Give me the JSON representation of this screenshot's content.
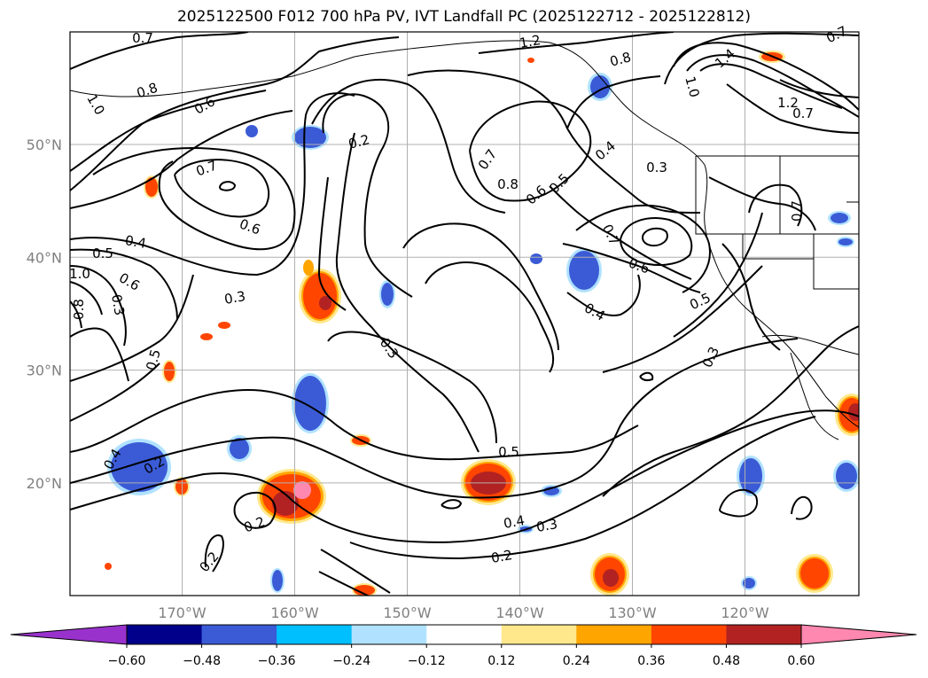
{
  "title": "2025122500 F012 700 hPa PV, IVT Landfall PC (2025122712 - 2025122812)",
  "axes": {
    "lon_ticks": [
      {
        "value": -170,
        "label": "170°W"
      },
      {
        "value": -160,
        "label": "160°W"
      },
      {
        "value": -150,
        "label": "150°W"
      },
      {
        "value": -140,
        "label": "140°W"
      },
      {
        "value": -130,
        "label": "130°W"
      },
      {
        "value": -120,
        "label": "120°W"
      }
    ],
    "lat_ticks": [
      {
        "value": 50,
        "label": "50°N"
      },
      {
        "value": 40,
        "label": "40°N"
      },
      {
        "value": 30,
        "label": "30°N"
      },
      {
        "value": 20,
        "label": "20°N"
      }
    ]
  },
  "colorbar": {
    "levels": [
      "−0.60",
      "−0.48",
      "−0.36",
      "−0.24",
      "−0.12",
      "0.12",
      "0.24",
      "0.36",
      "0.48",
      "0.60"
    ],
    "colors": [
      "#9932cc",
      "#00008b",
      "#3b5bd6",
      "#00bfff",
      "#b0e2ff",
      "#ffffff",
      "#ffe88c",
      "#ffa500",
      "#ff4500",
      "#b22222",
      "#ff88b0"
    ]
  },
  "contour_labels": [
    "0.7",
    "1.2",
    "0.8",
    "0.7",
    "1.0",
    "0.8",
    "0.6",
    "0.2",
    "0.7",
    "0.6",
    "0.4",
    "0.5",
    "0.6",
    "1.0",
    "0.8",
    "0.3",
    "0.3",
    "0.5",
    "0.3",
    "0.7",
    "0.8",
    "0.6",
    "0.5",
    "0.4",
    "0.3",
    "0.7",
    "0.6",
    "0.4",
    "0.5",
    "0.3",
    "1.4",
    "1.0",
    "1.2",
    "0.7",
    "0.7",
    "0.4",
    "0.2",
    "0.2",
    "0.2",
    "0.5",
    "0.4",
    "0.3",
    "0.2"
  ]
}
